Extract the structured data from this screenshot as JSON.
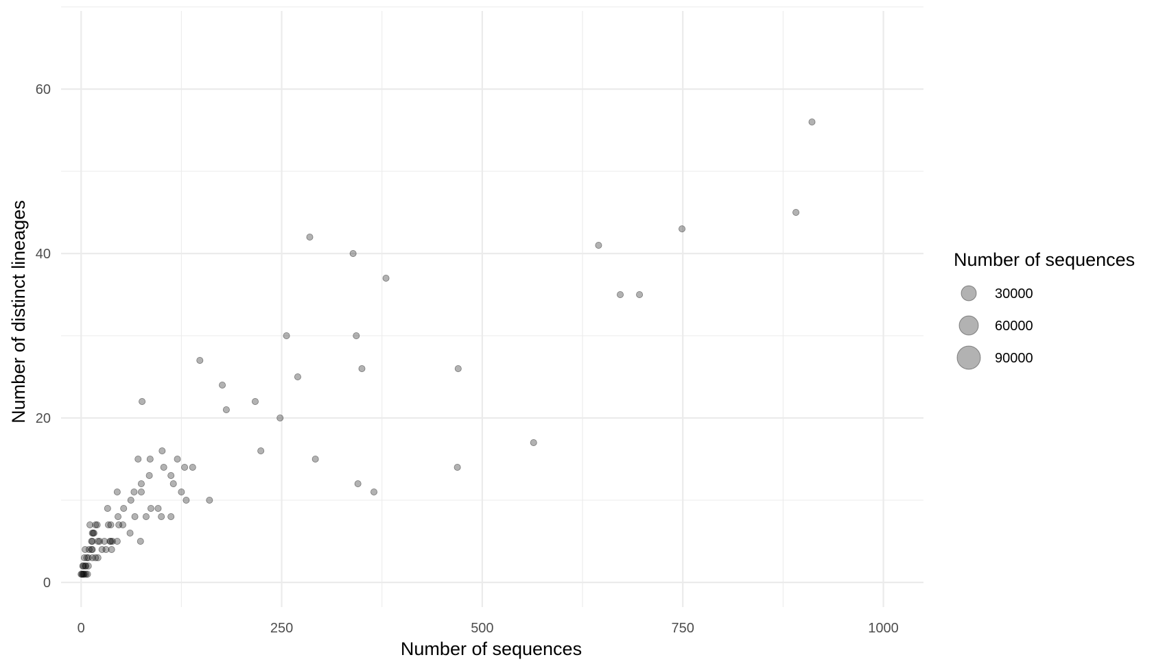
{
  "chart_data": {
    "type": "scatter",
    "title": "",
    "xlabel": "Number of sequences",
    "ylabel": "Number of distinct lineages",
    "xlim": [
      -25,
      1050
    ],
    "ylim": [
      -3,
      70
    ],
    "x_ticks": [
      0,
      250,
      500,
      750,
      1000
    ],
    "y_ticks": [
      0,
      20,
      40,
      60
    ],
    "x_tick_labels": [
      "0",
      "250",
      "500",
      "750",
      "1000"
    ],
    "y_tick_labels": [
      "0",
      "20",
      "40",
      "60"
    ],
    "grid": true,
    "point_color": "#000000",
    "point_opacity": 0.3,
    "legend": {
      "title": "Number of sequences",
      "position": "right",
      "entries": [
        {
          "label": "30000",
          "value": 30000
        },
        {
          "label": "60000",
          "value": 60000
        },
        {
          "label": "90000",
          "value": 90000
        }
      ]
    },
    "series": [
      {
        "points": [
          [
            911,
            56
          ],
          [
            891,
            45
          ],
          [
            749,
            43
          ],
          [
            645,
            41
          ],
          [
            672,
            35
          ],
          [
            696,
            35
          ],
          [
            285,
            42
          ],
          [
            339,
            40
          ],
          [
            380,
            37
          ],
          [
            256,
            30
          ],
          [
            343,
            30
          ],
          [
            350,
            26
          ],
          [
            470,
            26
          ],
          [
            270,
            25
          ],
          [
            148,
            27
          ],
          [
            176,
            24
          ],
          [
            181,
            21
          ],
          [
            217,
            22
          ],
          [
            248,
            20
          ],
          [
            224,
            16
          ],
          [
            292,
            15
          ],
          [
            345,
            12
          ],
          [
            365,
            11
          ],
          [
            564,
            17
          ],
          [
            469,
            14
          ],
          [
            76,
            22
          ],
          [
            71,
            15
          ],
          [
            86,
            15
          ],
          [
            101,
            16
          ],
          [
            120,
            15
          ],
          [
            85,
            13
          ],
          [
            103,
            14
          ],
          [
            112,
            13
          ],
          [
            129,
            14
          ],
          [
            139,
            14
          ],
          [
            75,
            12
          ],
          [
            115,
            12
          ],
          [
            125,
            11
          ],
          [
            66,
            11
          ],
          [
            45,
            11
          ],
          [
            75,
            11
          ],
          [
            131,
            10
          ],
          [
            160,
            10
          ],
          [
            62,
            10
          ],
          [
            53,
            9
          ],
          [
            33,
            9
          ],
          [
            87,
            9
          ],
          [
            96,
            9
          ],
          [
            46,
            8
          ],
          [
            67,
            8
          ],
          [
            81,
            8
          ],
          [
            100,
            8
          ],
          [
            112,
            8
          ],
          [
            61,
            6
          ],
          [
            74,
            5
          ],
          [
            34,
            7
          ],
          [
            37,
            7
          ],
          [
            47,
            7
          ],
          [
            52,
            7
          ],
          [
            11,
            7
          ],
          [
            18,
            7
          ],
          [
            20,
            7
          ],
          [
            14,
            6
          ],
          [
            15,
            6
          ],
          [
            16,
            6
          ],
          [
            21,
            5
          ],
          [
            13,
            5
          ],
          [
            14,
            5
          ],
          [
            23,
            5
          ],
          [
            29,
            5
          ],
          [
            36,
            5
          ],
          [
            37,
            5
          ],
          [
            39,
            5
          ],
          [
            45,
            5
          ],
          [
            10,
            4
          ],
          [
            13,
            4
          ],
          [
            14,
            4
          ],
          [
            26,
            4
          ],
          [
            31,
            4
          ],
          [
            38,
            4
          ],
          [
            5,
            4
          ],
          [
            7,
            3
          ],
          [
            9,
            3
          ],
          [
            14,
            3
          ],
          [
            18,
            3
          ],
          [
            21,
            3
          ],
          [
            4,
            3
          ],
          [
            3,
            2
          ],
          [
            5,
            2
          ],
          [
            6,
            2
          ],
          [
            9,
            2
          ],
          [
            2,
            2
          ],
          [
            1,
            1
          ],
          [
            2,
            1
          ],
          [
            3,
            1
          ],
          [
            4,
            1
          ],
          [
            6,
            1
          ],
          [
            8,
            1
          ],
          [
            0,
            1
          ]
        ]
      }
    ]
  }
}
